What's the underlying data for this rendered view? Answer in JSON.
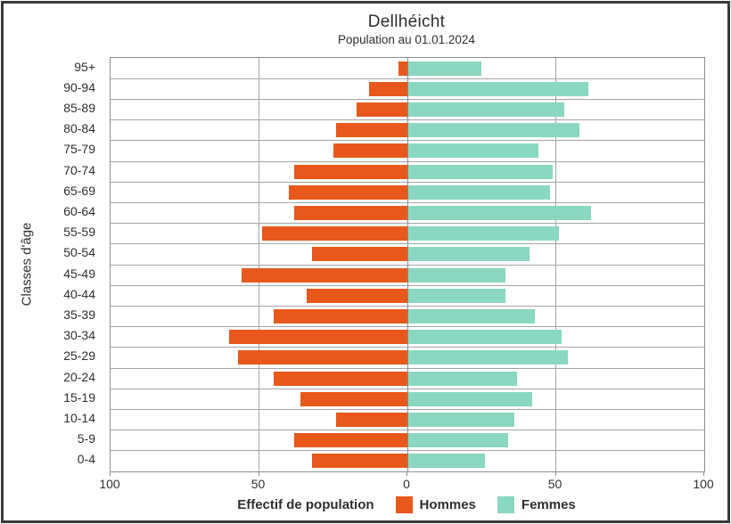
{
  "colors": {
    "hommes": "#e8581b",
    "femmes": "#8ad7c2",
    "grid": "#a5a5a5",
    "zero_line": "#8b8b8b",
    "text": "#2f2f2f",
    "frame_border": "#3a3a3a"
  },
  "chart_data": {
    "type": "bar",
    "orientation": "horizontal-population-pyramid",
    "title": "Dellhéicht",
    "subtitle": "Population au 01.01.2024",
    "xlabel": "Effectif de population",
    "ylabel": "Classes d'âge",
    "xlim": [
      -100,
      100
    ],
    "x_tick_values": [
      -100,
      -50,
      0,
      50,
      100
    ],
    "x_tick_labels": [
      "100",
      "50",
      "0",
      "50",
      "100"
    ],
    "vertical_gridline_values": [
      -50,
      0,
      50
    ],
    "grid": true,
    "legend_position": "bottom",
    "categories": [
      "95+",
      "90-94",
      "85-89",
      "80-84",
      "75-79",
      "70-74",
      "65-69",
      "60-64",
      "55-59",
      "50-54",
      "45-49",
      "40-44",
      "35-39",
      "30-34",
      "25-29",
      "20-24",
      "15-19",
      "10-14",
      "5-9",
      "0-4"
    ],
    "series": [
      {
        "name": "Hommes",
        "side": "left",
        "color": "#e8581b",
        "values": [
          3,
          13,
          17,
          24,
          25,
          38,
          40,
          38,
          49,
          32,
          56,
          34,
          45,
          60,
          57,
          45,
          36,
          24,
          38,
          32
        ]
      },
      {
        "name": "Femmes",
        "side": "right",
        "color": "#8ad7c2",
        "values": [
          25,
          61,
          53,
          58,
          44,
          49,
          48,
          62,
          51,
          41,
          33,
          33,
          43,
          52,
          54,
          37,
          42,
          36,
          34,
          26
        ]
      }
    ]
  }
}
